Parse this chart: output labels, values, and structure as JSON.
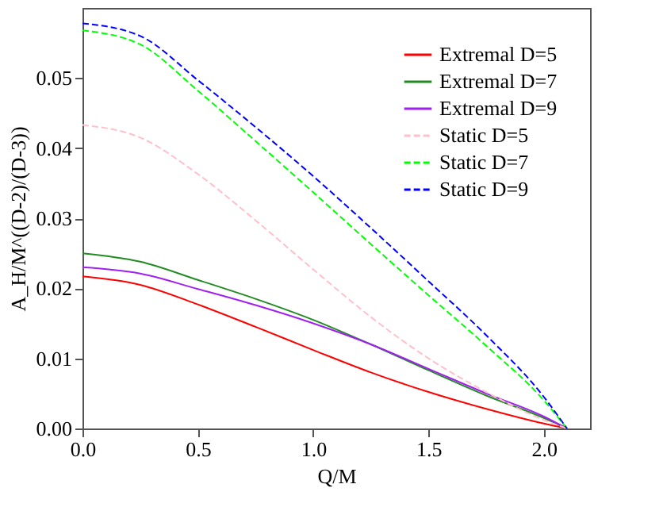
{
  "chart_data": {
    "type": "line",
    "xlabel": "Q/M",
    "ylabel": "A_H/M^((D-2)/(D-3))",
    "x": [
      0,
      0.25,
      0.5,
      0.75,
      1.0,
      1.25,
      1.5,
      1.75,
      2.0,
      2.1
    ],
    "xlim": [
      0,
      2.2
    ],
    "xticks": [
      {
        "value": 0,
        "label": "0.0"
      },
      0.5,
      {
        "value": 1,
        "label": "1.0"
      },
      1.5,
      {
        "value": 2,
        "label": "2.0"
      }
    ],
    "ylim": [
      0,
      0.06
    ],
    "yticks": [
      {
        "value": 0,
        "label": "0.00"
      },
      0.01,
      0.02,
      0.03,
      0.04,
      0.05
    ],
    "grid": false,
    "legend": "top right",
    "marker": "none",
    "series": [
      {
        "name": "Extremal D=5",
        "color": "#ff0000",
        "line_style": "solid",
        "values": [
          0.0217,
          0.0205,
          0.0177,
          0.0145,
          0.0112,
          0.008,
          0.0052,
          0.0028,
          0.0007,
          0
        ]
      },
      {
        "name": "Extremal D=7",
        "color": "#228b22",
        "line_style": "solid",
        "values": [
          0.025,
          0.0238,
          0.0212,
          0.0185,
          0.0155,
          0.012,
          0.0083,
          0.0047,
          0.0015,
          0
        ]
      },
      {
        "name": "Extremal D=9",
        "color": "#a020f0",
        "line_style": "solid",
        "values": [
          0.023,
          0.0221,
          0.0199,
          0.0176,
          0.015,
          0.012,
          0.0085,
          0.005,
          0.0017,
          0
        ]
      },
      {
        "name": "Static D=5",
        "color": "#ffc0cb",
        "line_style": "dashed",
        "values": [
          0.0433,
          0.0415,
          0.0363,
          0.0297,
          0.0227,
          0.0159,
          0.01,
          0.0052,
          0.0012,
          0
        ]
      },
      {
        "name": "Static D=7",
        "color": "#00ff00",
        "line_style": "dashed",
        "values": [
          0.0568,
          0.0548,
          0.0482,
          0.041,
          0.0337,
          0.0263,
          0.019,
          0.0118,
          0.004,
          0
        ]
      },
      {
        "name": "Static D=9",
        "color": "#0000ff",
        "line_style": "dashed",
        "values": [
          0.0578,
          0.056,
          0.0497,
          0.043,
          0.036,
          0.0286,
          0.021,
          0.0133,
          0.0045,
          0
        ]
      }
    ]
  }
}
